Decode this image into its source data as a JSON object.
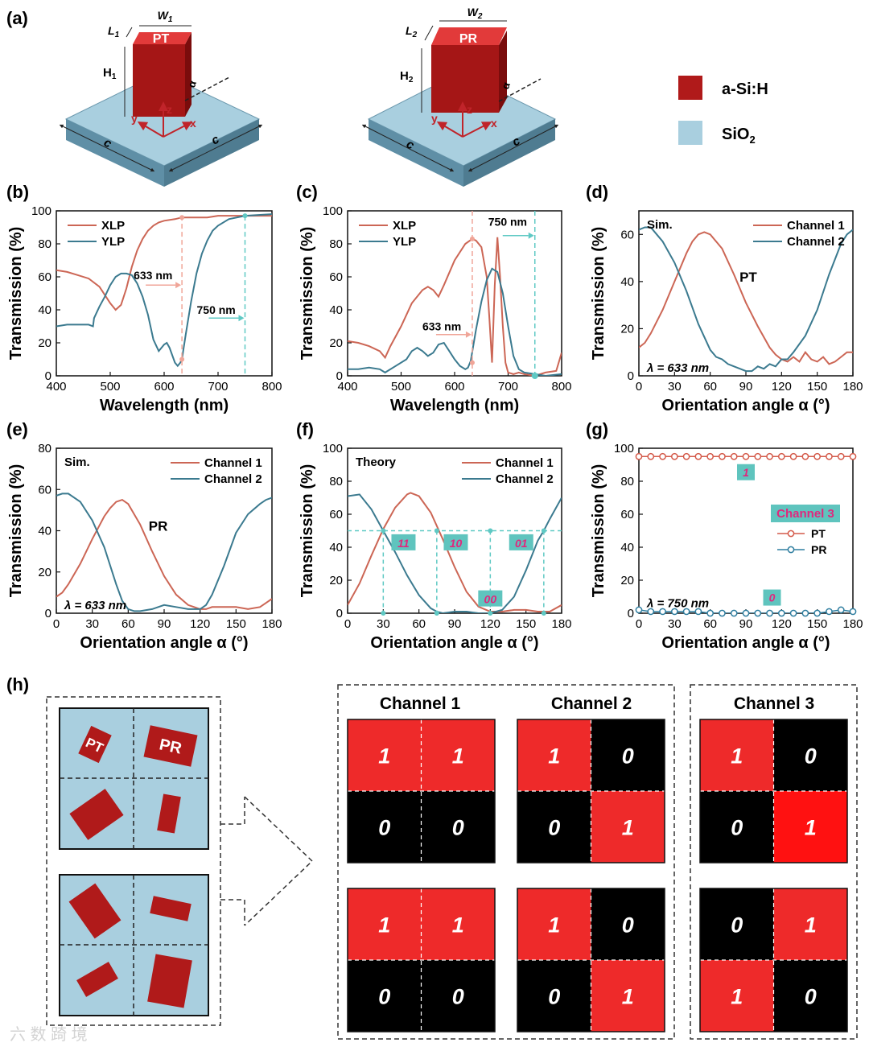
{
  "colors": {
    "channel1": "#cc6655",
    "channel2": "#3b7a8f",
    "asih": "#b01a1a",
    "sio2": "#a9cfdf",
    "guide": "#5fc9c4",
    "guide633": "#f0a598",
    "bitRed": "#ee2a2a",
    "bitRedBright": "#ff1111",
    "bitBlack": "#000000",
    "tagBg": "#5fc4be",
    "tagText": "#e0287d"
  },
  "panel_a": {
    "label": "(a)",
    "left": {
      "pillar": "PT",
      "w": "W",
      "w_sub": "1",
      "l": "L",
      "l_sub": "1",
      "h": "H",
      "h_sub": "1"
    },
    "right": {
      "pillar": "PR",
      "w": "W",
      "w_sub": "2",
      "l": "L",
      "l_sub": "2",
      "h": "H",
      "h_sub": "2"
    },
    "axis_x": "x",
    "axis_y": "y",
    "axis_z": "z",
    "alpha": "α",
    "period": "c",
    "legend": [
      {
        "name": "a-Si:H",
        "sub": "",
        "color": "#b01a1a"
      },
      {
        "name": "SiO",
        "sub": "2",
        "color": "#a9cfdf"
      }
    ]
  },
  "chart_data": [
    {
      "panel": "(b)",
      "type": "line",
      "xlabel": "Wavelength (nm)",
      "ylabel": "Transmission (%)",
      "xlim": [
        400,
        800
      ],
      "ylim": [
        0,
        100
      ],
      "xticks": [
        400,
        500,
        600,
        700,
        800
      ],
      "yticks": [
        0,
        20,
        40,
        60,
        80,
        100
      ],
      "series": [
        {
          "name": "XLP",
          "x": [
            400,
            420,
            440,
            460,
            480,
            500,
            510,
            520,
            530,
            540,
            550,
            560,
            570,
            580,
            590,
            600,
            620,
            633,
            650,
            680,
            700,
            750,
            800
          ],
          "y": [
            64,
            63,
            61,
            59,
            54,
            44,
            40,
            43,
            53,
            66,
            76,
            83,
            88,
            91,
            93,
            94,
            95,
            96,
            96,
            96,
            97,
            97,
            97
          ]
        },
        {
          "name": "YLP",
          "x": [
            400,
            420,
            440,
            460,
            468,
            470,
            480,
            490,
            500,
            510,
            520,
            530,
            540,
            550,
            560,
            570,
            580,
            590,
            600,
            605,
            610,
            620,
            625,
            630,
            633,
            640,
            650,
            660,
            670,
            680,
            690,
            700,
            720,
            750,
            800
          ],
          "y": [
            30,
            31,
            31,
            31,
            30,
            35,
            42,
            48,
            55,
            60,
            62,
            62,
            61,
            56,
            48,
            37,
            22,
            15,
            19,
            20,
            17,
            8,
            6,
            8,
            10,
            25,
            45,
            62,
            74,
            82,
            88,
            91,
            95,
            97,
            98
          ]
        }
      ],
      "annotations": [
        {
          "text": "633 nm",
          "x": 633
        },
        {
          "text": "750 nm",
          "x": 750
        }
      ]
    },
    {
      "panel": "(c)",
      "type": "line",
      "xlabel": "Wavelength (nm)",
      "ylabel": "Transmission (%)",
      "xlim": [
        400,
        800
      ],
      "ylim": [
        0,
        100
      ],
      "xticks": [
        400,
        500,
        600,
        700,
        800
      ],
      "yticks": [
        0,
        20,
        40,
        60,
        80,
        100
      ],
      "series": [
        {
          "name": "XLP",
          "x": [
            400,
            420,
            440,
            460,
            470,
            480,
            500,
            520,
            540,
            550,
            560,
            570,
            580,
            600,
            620,
            633,
            640,
            650,
            660,
            665,
            670,
            675,
            680,
            685,
            690,
            695,
            700,
            710,
            720,
            730,
            750,
            770,
            790,
            800
          ],
          "y": [
            21,
            20,
            18,
            15,
            11,
            18,
            30,
            44,
            52,
            54,
            52,
            48,
            55,
            70,
            80,
            83,
            82,
            78,
            60,
            35,
            8,
            55,
            84,
            60,
            30,
            8,
            2,
            1,
            2,
            1,
            0,
            2,
            3,
            14
          ]
        },
        {
          "name": "YLP",
          "x": [
            400,
            420,
            440,
            460,
            470,
            490,
            510,
            520,
            530,
            540,
            550,
            560,
            570,
            580,
            590,
            600,
            610,
            620,
            625,
            630,
            640,
            650,
            660,
            670,
            680,
            690,
            700,
            710,
            720,
            730,
            750,
            770,
            800
          ],
          "y": [
            4,
            4,
            5,
            4,
            2,
            6,
            10,
            15,
            17,
            15,
            12,
            14,
            19,
            20,
            15,
            10,
            6,
            4,
            5,
            9,
            28,
            45,
            58,
            65,
            63,
            50,
            30,
            12,
            4,
            2,
            1,
            0,
            1
          ]
        }
      ],
      "annotations": [
        {
          "text": "633 nm",
          "x": 633
        },
        {
          "text": "750 nm",
          "x": 750
        }
      ]
    },
    {
      "panel": "(d)",
      "type": "line",
      "xlabel": "Orientation angle α (°)",
      "ylabel": "Transmission (%)",
      "xlim": [
        0,
        180
      ],
      "ylim": [
        0,
        70
      ],
      "xticks": [
        0,
        30,
        60,
        90,
        120,
        150,
        180
      ],
      "yticks": [
        0,
        20,
        40,
        60
      ],
      "series": [
        {
          "name": "Channel 1",
          "x": [
            0,
            5,
            10,
            20,
            30,
            40,
            45,
            50,
            55,
            60,
            70,
            80,
            90,
            100,
            110,
            115,
            120,
            125,
            130,
            135,
            140,
            145,
            150,
            155,
            160,
            165,
            170,
            175,
            180
          ],
          "y": [
            12,
            14,
            18,
            28,
            40,
            52,
            57,
            60,
            61,
            60,
            54,
            43,
            31,
            21,
            12,
            9,
            7,
            6,
            8,
            6,
            10,
            7,
            6,
            8,
            5,
            6,
            8,
            10,
            10
          ]
        },
        {
          "name": "Channel 2",
          "x": [
            0,
            5,
            10,
            15,
            20,
            30,
            40,
            50,
            60,
            65,
            70,
            75,
            80,
            85,
            90,
            95,
            100,
            105,
            110,
            115,
            120,
            125,
            130,
            140,
            150,
            160,
            170,
            175,
            180
          ],
          "y": [
            62,
            63,
            63,
            60,
            57,
            48,
            36,
            22,
            11,
            8,
            7,
            5,
            4,
            3,
            2,
            2,
            4,
            3,
            5,
            4,
            7,
            7,
            10,
            17,
            28,
            43,
            56,
            60,
            62
          ]
        }
      ],
      "annotations": [
        {
          "text": "Sim."
        },
        {
          "text": "PT"
        },
        {
          "text": "λ = 633 nm"
        }
      ]
    },
    {
      "panel": "(e)",
      "type": "line",
      "xlabel": "Orientation angle α (°)",
      "ylabel": "Transmission (%)",
      "xlim": [
        0,
        180
      ],
      "ylim": [
        0,
        80
      ],
      "xticks": [
        0,
        30,
        60,
        90,
        120,
        150,
        180
      ],
      "yticks": [
        0,
        20,
        40,
        60,
        80
      ],
      "series": [
        {
          "name": "Channel 1",
          "x": [
            0,
            5,
            10,
            20,
            30,
            40,
            45,
            50,
            55,
            60,
            70,
            80,
            90,
            100,
            110,
            115,
            120,
            125,
            130,
            140,
            150,
            160,
            170,
            175,
            180
          ],
          "y": [
            8,
            10,
            14,
            24,
            36,
            47,
            51,
            54,
            55,
            53,
            43,
            30,
            18,
            9,
            4,
            3,
            2,
            2,
            3,
            3,
            3,
            2,
            3,
            5,
            7
          ]
        },
        {
          "name": "Channel 2",
          "x": [
            0,
            5,
            10,
            20,
            30,
            40,
            50,
            55,
            60,
            65,
            70,
            80,
            90,
            100,
            110,
            115,
            120,
            125,
            130,
            140,
            150,
            160,
            170,
            175,
            180
          ],
          "y": [
            57,
            58,
            58,
            54,
            45,
            32,
            14,
            6,
            2,
            1,
            1,
            2,
            4,
            3,
            2,
            2,
            2,
            4,
            9,
            23,
            39,
            48,
            53,
            55,
            56
          ]
        }
      ],
      "annotations": [
        {
          "text": "Sim."
        },
        {
          "text": "PR"
        },
        {
          "text": "λ = 633 nm"
        }
      ]
    },
    {
      "panel": "(f)",
      "type": "line",
      "xlabel": "Orientation angle α (°)",
      "ylabel": "Transmission (%)",
      "xlim": [
        0,
        180
      ],
      "ylim": [
        0,
        100
      ],
      "xticks": [
        0,
        30,
        60,
        90,
        120,
        150,
        180
      ],
      "yticks": [
        0,
        20,
        40,
        60,
        80,
        100
      ],
      "series": [
        {
          "name": "Channel 1",
          "x": [
            0,
            10,
            20,
            30,
            40,
            50,
            53,
            60,
            70,
            80,
            90,
            100,
            110,
            120,
            130,
            140,
            150,
            160,
            170,
            180
          ],
          "y": [
            5,
            18,
            35,
            51,
            64,
            72,
            73,
            71,
            61,
            45,
            28,
            13,
            4,
            1,
            1,
            2,
            2,
            1,
            1,
            5
          ]
        },
        {
          "name": "Channel 2",
          "x": [
            0,
            10,
            20,
            30,
            40,
            50,
            60,
            70,
            75,
            80,
            90,
            100,
            110,
            120,
            130,
            140,
            150,
            160,
            165,
            170,
            180
          ],
          "y": [
            71,
            72,
            63,
            50,
            37,
            23,
            11,
            3,
            1,
            0,
            1,
            1,
            0,
            0,
            2,
            10,
            26,
            44,
            50,
            57,
            70
          ]
        }
      ],
      "guides": {
        "level": 50,
        "alphas": [
          30,
          75,
          120,
          165
        ]
      },
      "tags": [
        "11",
        "10",
        "00",
        "01"
      ],
      "annotations": [
        {
          "text": "Theory"
        }
      ]
    },
    {
      "panel": "(g)",
      "type": "line",
      "xlabel": "Orientation angle α (°)",
      "ylabel": "Transmission (%)",
      "xlim": [
        0,
        180
      ],
      "ylim": [
        0,
        100
      ],
      "xticks": [
        0,
        30,
        60,
        90,
        120,
        150,
        180
      ],
      "yticks": [
        0,
        20,
        40,
        60,
        80,
        100
      ],
      "legend_title": "Channel 3",
      "series": [
        {
          "name": "PT",
          "x": [
            0,
            10,
            20,
            30,
            40,
            50,
            60,
            70,
            80,
            90,
            100,
            110,
            120,
            130,
            140,
            150,
            160,
            170,
            180
          ],
          "y": [
            95,
            95,
            95,
            95,
            95,
            95,
            95,
            95,
            95,
            95,
            95,
            95,
            95,
            95,
            95,
            95,
            95,
            95,
            95
          ]
        },
        {
          "name": "PR",
          "x": [
            0,
            10,
            20,
            30,
            40,
            50,
            60,
            70,
            80,
            90,
            100,
            110,
            120,
            130,
            140,
            150,
            160,
            170,
            180
          ],
          "y": [
            2,
            1,
            1,
            1,
            1,
            1,
            0,
            0,
            0,
            0,
            0,
            0,
            0,
            0,
            0,
            0,
            1,
            2,
            1
          ]
        }
      ],
      "tags": [
        "1",
        "0"
      ],
      "annotations": [
        {
          "text": "λ = 750 nm"
        }
      ]
    }
  ],
  "panel_h": {
    "label": "(h)",
    "pillars": [
      "PT",
      "PR"
    ],
    "channels": [
      "Channel 1",
      "Channel 2",
      "Channel 3"
    ],
    "top": {
      "ch1": [
        "1",
        "1",
        "0",
        "0"
      ],
      "ch2": [
        "1",
        "0",
        "0",
        "1"
      ],
      "ch3": [
        "1",
        "0",
        "0",
        "1"
      ]
    },
    "bottom": {
      "ch1": [
        "1",
        "1",
        "0",
        "0"
      ],
      "ch2": [
        "1",
        "0",
        "0",
        "1"
      ],
      "ch3": [
        "0",
        "1",
        "1",
        "0"
      ]
    }
  },
  "watermark": "六 数 踦 境"
}
